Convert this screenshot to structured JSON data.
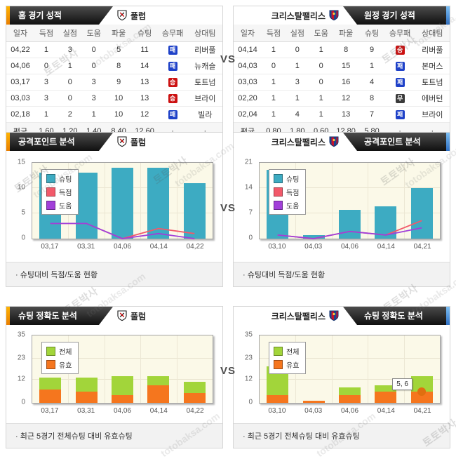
{
  "vs_label": "VS",
  "watermark": {
    "korean_text": "토토박사",
    "domain_text": "totobaksa.com"
  },
  "colors": {
    "accent_orange": "#f7a100",
    "accent_blue": "#4f9fe6",
    "header_dark": "#1a1a1a",
    "bar_teal": "#3dabc2",
    "line_red": "#f2596a",
    "line_purple": "#a13fd9",
    "bar_green": "#a2d53a",
    "bar_orange": "#f5761e",
    "badge_win": "#cc1111",
    "badge_loss": "#1e41c8",
    "badge_draw": "#3a3a3a",
    "plot_bg": "#fbf9e8"
  },
  "icons": {
    "fulham_logo": "white-shield-crest",
    "crystal_palace_logo": "blue-red-striped-shield-crest"
  },
  "record": {
    "columns": [
      "일자",
      "득점",
      "실점",
      "도움",
      "파울",
      "슈팅",
      "승무패",
      "상대팀"
    ],
    "home": {
      "title": "홈 경기 성적",
      "team": "풀럼",
      "rows": [
        {
          "date": "04,22",
          "goals": "1",
          "conceded": "3",
          "assists": "0",
          "fouls": "5",
          "shots": "11",
          "result": "패",
          "result_type": "loss",
          "opponent": "리버풀"
        },
        {
          "date": "04,06",
          "goals": "0",
          "conceded": "1",
          "assists": "0",
          "fouls": "8",
          "shots": "14",
          "result": "패",
          "result_type": "loss",
          "opponent": "뉴캐슬"
        },
        {
          "date": "03,17",
          "goals": "3",
          "conceded": "0",
          "assists": "3",
          "fouls": "9",
          "shots": "13",
          "result": "승",
          "result_type": "win",
          "opponent": "토트넘"
        },
        {
          "date": "03,03",
          "goals": "3",
          "conceded": "0",
          "assists": "3",
          "fouls": "10",
          "shots": "13",
          "result": "승",
          "result_type": "win",
          "opponent": "브라이"
        },
        {
          "date": "02,18",
          "goals": "1",
          "conceded": "2",
          "assists": "1",
          "fouls": "10",
          "shots": "12",
          "result": "패",
          "result_type": "loss",
          "opponent": "빌라"
        }
      ],
      "average": {
        "label": "평균",
        "goals": "1,60",
        "conceded": "1,20",
        "assists": "1,40",
        "fouls": "8,40",
        "shots": "12,60",
        "result": "·",
        "opponent": "·"
      }
    },
    "away": {
      "title": "원정 경기 성적",
      "team": "크리스탈팰리스",
      "rows": [
        {
          "date": "04,14",
          "goals": "1",
          "conceded": "0",
          "assists": "1",
          "fouls": "8",
          "shots": "9",
          "result": "승",
          "result_type": "win",
          "opponent": "리버풀"
        },
        {
          "date": "04,03",
          "goals": "0",
          "conceded": "1",
          "assists": "0",
          "fouls": "15",
          "shots": "1",
          "result": "패",
          "result_type": "loss",
          "opponent": "본머스"
        },
        {
          "date": "03,03",
          "goals": "1",
          "conceded": "3",
          "assists": "0",
          "fouls": "16",
          "shots": "4",
          "result": "패",
          "result_type": "loss",
          "opponent": "토트넘"
        },
        {
          "date": "02,20",
          "goals": "1",
          "conceded": "1",
          "assists": "1",
          "fouls": "12",
          "shots": "8",
          "result": "무",
          "result_type": "draw",
          "opponent": "에버턴"
        },
        {
          "date": "02,04",
          "goals": "1",
          "conceded": "4",
          "assists": "1",
          "fouls": "13",
          "shots": "7",
          "result": "패",
          "result_type": "loss",
          "opponent": "브라이"
        }
      ],
      "average": {
        "label": "평균",
        "goals": "0,80",
        "conceded": "1,80",
        "assists": "0,60",
        "fouls": "12,80",
        "shots": "5,80",
        "result": "·",
        "opponent": "·"
      }
    }
  },
  "attack_section": {
    "title": "공격포인트 분석",
    "caption": "· 슈팅대비 득점/도움 현황"
  },
  "accuracy_section": {
    "title": "슈팅 정확도 분석",
    "caption": "· 최근 5경기 전체슈팅 대비 유효슈팅"
  },
  "chart_data": [
    {
      "id": "fulham-attack",
      "type": "bar",
      "team": "풀럼",
      "categories": [
        "03,17",
        "03,31",
        "04,06",
        "04,14",
        "04,22"
      ],
      "series": [
        {
          "name": "슈팅",
          "kind": "bar",
          "color": "#3dabc2",
          "values": [
            13,
            13,
            14,
            14,
            11
          ]
        },
        {
          "name": "득점",
          "kind": "line",
          "color": "#f2596a",
          "values": [
            3,
            3,
            0,
            2,
            1
          ]
        },
        {
          "name": "도움",
          "kind": "line",
          "color": "#a13fd9",
          "values": [
            3,
            3,
            0,
            1,
            0
          ]
        }
      ],
      "ylim": [
        0,
        15
      ],
      "yticks": [
        0,
        5,
        10,
        15
      ],
      "grid": true,
      "legend_position": "top-left"
    },
    {
      "id": "palace-attack",
      "type": "bar",
      "team": "크리스탈팰리스",
      "categories": [
        "03,10",
        "04,03",
        "04,06",
        "04,14",
        "04,21"
      ],
      "series": [
        {
          "name": "슈팅",
          "kind": "bar",
          "color": "#3dabc2",
          "values": [
            19,
            1,
            8,
            9,
            14
          ]
        },
        {
          "name": "득점",
          "kind": "line",
          "color": "#f2596a",
          "values": [
            1,
            0,
            2,
            1,
            5
          ]
        },
        {
          "name": "도움",
          "kind": "line",
          "color": "#a13fd9",
          "values": [
            1,
            0,
            2,
            1,
            3
          ]
        }
      ],
      "ylim": [
        0,
        21
      ],
      "yticks": [
        0,
        7,
        14,
        21
      ],
      "grid": true,
      "legend_position": "top-left"
    },
    {
      "id": "fulham-accuracy",
      "type": "bar",
      "team": "풀럼",
      "categories": [
        "03,17",
        "03,31",
        "04,06",
        "04,14",
        "04,22"
      ],
      "series": [
        {
          "name": "전체",
          "kind": "bar",
          "color": "#a2d53a",
          "values": [
            13,
            13,
            14,
            14,
            11
          ]
        },
        {
          "name": "유효",
          "kind": "bar-overlay",
          "color": "#f5761e",
          "values": [
            7,
            6,
            4,
            9,
            5
          ]
        }
      ],
      "ylim": [
        0,
        35
      ],
      "yticks": [
        0,
        12,
        23,
        35
      ],
      "grid": true,
      "legend_position": "top-left"
    },
    {
      "id": "palace-accuracy",
      "type": "bar",
      "team": "크리스탈팰리스",
      "categories": [
        "03,10",
        "04,03",
        "04,06",
        "04,14",
        "04,21"
      ],
      "series": [
        {
          "name": "전체",
          "kind": "bar",
          "color": "#a2d53a",
          "values": [
            19,
            1,
            8,
            9,
            14
          ]
        },
        {
          "name": "유효",
          "kind": "bar-overlay",
          "color": "#f5761e",
          "values": [
            4,
            1,
            4,
            6,
            6
          ]
        }
      ],
      "ylim": [
        0,
        35
      ],
      "yticks": [
        0,
        12,
        23,
        35
      ],
      "grid": true,
      "legend_position": "top-left",
      "tooltip": {
        "text": "5, 6",
        "category_index": 4,
        "series_index": 1
      }
    }
  ]
}
